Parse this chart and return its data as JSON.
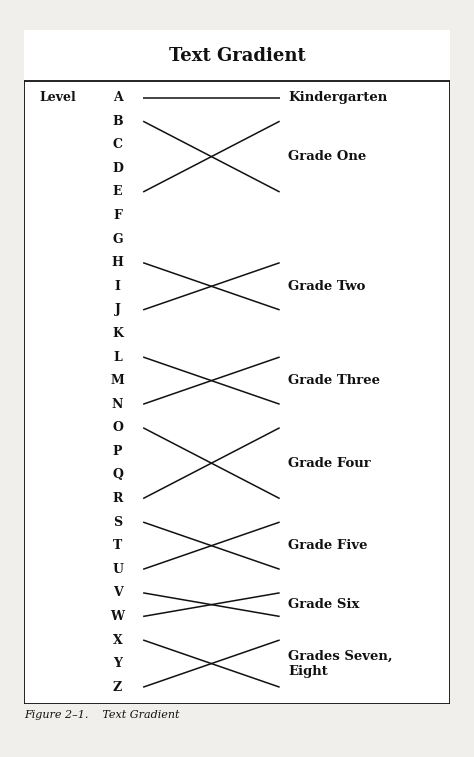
{
  "title": "Text Gradient",
  "caption": "Figure 2–1.    Text Gradient",
  "level_label": "Level",
  "letters": [
    "A",
    "B",
    "C",
    "D",
    "E",
    "F",
    "G",
    "H",
    "I",
    "J",
    "K",
    "L",
    "M",
    "N",
    "O",
    "P",
    "Q",
    "R",
    "S",
    "T",
    "U",
    "V",
    "W",
    "X",
    "Y",
    "Z"
  ],
  "grade_labels": [
    {
      "text": "Kindergarten",
      "top_letter": "A",
      "bot_letter": "A"
    },
    {
      "text": "Grade One",
      "top_letter": "B",
      "bot_letter": "E"
    },
    {
      "text": "Grade Two",
      "top_letter": "H",
      "bot_letter": "J"
    },
    {
      "text": "Grade Three",
      "top_letter": "L",
      "bot_letter": "N"
    },
    {
      "text": "Grade Four",
      "top_letter": "O",
      "bot_letter": "R"
    },
    {
      "text": "Grade Five",
      "top_letter": "S",
      "bot_letter": "U"
    },
    {
      "text": "Grade Six",
      "top_letter": "V",
      "bot_letter": "W"
    },
    {
      "text": "Grades Seven,\nEight",
      "top_letter": "X",
      "bot_letter": "Z"
    }
  ],
  "bg_color": "#f0efeb",
  "box_color": "#111111",
  "text_color": "#111111",
  "line_color": "#111111",
  "title_fontsize": 13,
  "letter_fontsize": 9,
  "grade_fontsize": 9.5,
  "caption_fontsize": 8
}
